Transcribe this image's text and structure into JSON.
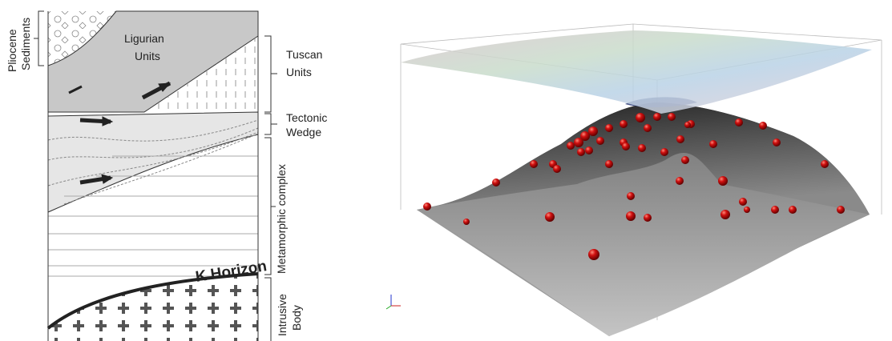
{
  "left_panel": {
    "pliocene": {
      "lines": [
        "Pliocene",
        "Sediments"
      ]
    },
    "ligurian": {
      "lines": [
        "Ligurian",
        "Units"
      ]
    },
    "tuscan": {
      "lines": [
        "Tuscan",
        "Units"
      ]
    },
    "wedge": {
      "lines": [
        "Tectonic",
        "Wedge"
      ]
    },
    "metamorphic": {
      "label": "Metamorphic complex"
    },
    "k_horizon": {
      "label": "K Horizon"
    },
    "intrusive": {
      "lines": [
        "Intrusive",
        "Body"
      ]
    }
  }
}
